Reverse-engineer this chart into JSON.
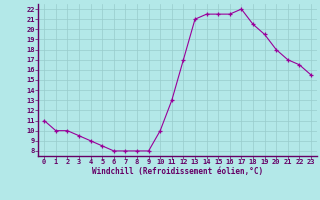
{
  "x": [
    0,
    1,
    2,
    3,
    4,
    5,
    6,
    7,
    8,
    9,
    10,
    11,
    12,
    13,
    14,
    15,
    16,
    17,
    18,
    19,
    20,
    21,
    22,
    23
  ],
  "y": [
    11,
    10,
    10,
    9.5,
    9,
    8.5,
    8,
    8,
    8,
    8,
    10,
    13,
    17,
    21,
    21.5,
    21.5,
    21.5,
    22,
    20.5,
    19.5,
    18,
    17,
    16.5,
    15.5
  ],
  "line_color": "#990099",
  "marker": "+",
  "bg_color": "#b3e8e8",
  "grid_color": "#99cccc",
  "axis_color": "#660066",
  "tick_color": "#660066",
  "xlabel": "Windchill (Refroidissement éolien,°C)",
  "xlabel_color": "#660066",
  "ylim": [
    7.5,
    22.5
  ],
  "xlim": [
    -0.5,
    23.5
  ],
  "yticks": [
    8,
    9,
    10,
    11,
    12,
    13,
    14,
    15,
    16,
    17,
    18,
    19,
    20,
    21,
    22
  ],
  "xticks": [
    0,
    1,
    2,
    3,
    4,
    5,
    6,
    7,
    8,
    9,
    10,
    11,
    12,
    13,
    14,
    15,
    16,
    17,
    18,
    19,
    20,
    21,
    22,
    23
  ]
}
